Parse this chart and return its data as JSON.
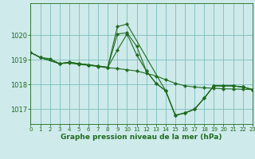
{
  "title": "Graphe pression niveau de la mer (hPa)",
  "background_color": "#ceeaea",
  "grid_color": "#7dbdbd",
  "line_color": "#1f6b1f",
  "marker_color": "#1f6b1f",
  "ylim": [
    1016.4,
    1021.3
  ],
  "yticks": [
    1017,
    1018,
    1019,
    1020
  ],
  "xlim": [
    0,
    23
  ],
  "xticks": [
    0,
    1,
    2,
    3,
    4,
    5,
    6,
    7,
    8,
    9,
    10,
    11,
    12,
    13,
    14,
    15,
    16,
    17,
    18,
    19,
    20,
    21,
    22,
    23
  ],
  "series": [
    {
      "x": [
        0,
        1,
        3,
        4,
        5,
        6,
        7,
        8,
        9,
        10,
        14,
        15,
        16,
        17,
        18,
        19,
        20,
        21,
        22,
        23
      ],
      "y": [
        1019.3,
        1019.1,
        1018.85,
        1018.9,
        1018.85,
        1018.8,
        1018.75,
        1018.7,
        1020.35,
        1020.45,
        1017.75,
        1016.75,
        1016.85,
        1017.0,
        1017.45,
        1017.95,
        1017.95,
        1017.95,
        1017.9,
        1017.8
      ]
    },
    {
      "x": [
        0,
        1,
        3,
        4,
        5,
        6,
        7,
        8,
        9,
        10,
        11,
        12,
        13,
        14,
        15,
        16,
        17,
        18,
        19,
        20,
        21,
        22,
        23
      ],
      "y": [
        1019.3,
        1019.1,
        1018.85,
        1018.9,
        1018.85,
        1018.8,
        1018.75,
        1018.7,
        1020.05,
        1020.1,
        1019.55,
        1018.55,
        1018.05,
        1017.75,
        1016.75,
        1016.85,
        1017.0,
        1017.45,
        1017.95,
        1017.95,
        1017.95,
        1017.9,
        1017.8
      ]
    },
    {
      "x": [
        0,
        1,
        3,
        4,
        5,
        6,
        7,
        8,
        9,
        10,
        11,
        12,
        13,
        14,
        15,
        16,
        17,
        18,
        19,
        20,
        21,
        22,
        23
      ],
      "y": [
        1019.3,
        1019.1,
        1018.85,
        1018.9,
        1018.85,
        1018.8,
        1018.75,
        1018.7,
        1019.4,
        1020.05,
        1019.2,
        1018.55,
        1018.05,
        1017.75,
        1016.75,
        1016.85,
        1017.0,
        1017.45,
        1017.95,
        1017.95,
        1017.95,
        1017.9,
        1017.8
      ]
    },
    {
      "x": [
        0,
        1,
        2,
        3,
        4,
        5,
        6,
        7,
        8,
        9,
        10,
        11,
        12,
        13,
        14,
        15,
        16,
        17,
        18,
        19,
        20,
        21,
        22,
        23
      ],
      "y": [
        1019.3,
        1019.1,
        1019.05,
        1018.85,
        1018.87,
        1018.82,
        1018.78,
        1018.73,
        1018.68,
        1018.65,
        1018.6,
        1018.55,
        1018.45,
        1018.35,
        1018.2,
        1018.05,
        1017.95,
        1017.9,
        1017.87,
        1017.85,
        1017.83,
        1017.82,
        1017.81,
        1017.8
      ]
    }
  ]
}
